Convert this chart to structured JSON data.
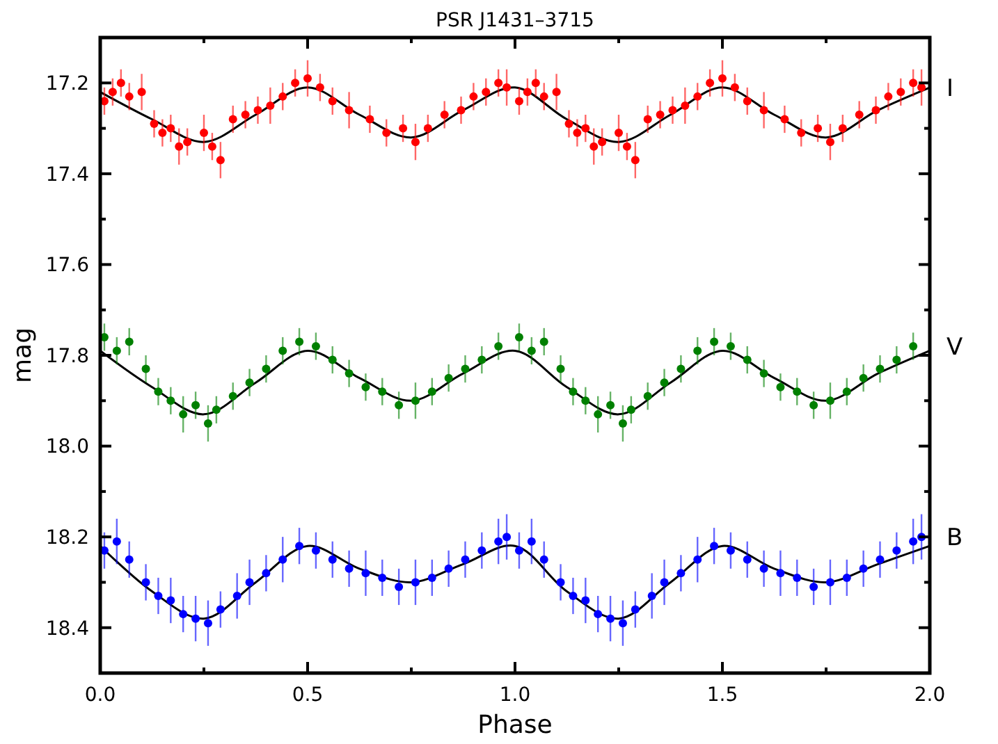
{
  "chart_data": {
    "type": "scatter",
    "title": "PSR J1431–3715",
    "xlabel": "Phase",
    "ylabel": "mag",
    "xlim": [
      0,
      2
    ],
    "ylim": [
      18.5,
      17.1
    ],
    "xticks": [
      {
        "value": 0,
        "label": "0.0"
      },
      {
        "value": 0.25,
        "label": null
      },
      {
        "value": 0.5,
        "label": "0.5"
      },
      {
        "value": 0.75,
        "label": null
      },
      {
        "value": 1,
        "label": "1.0"
      },
      {
        "value": 1.25,
        "label": null
      },
      {
        "value": 1.5,
        "label": "1.5"
      },
      {
        "value": 1.75,
        "label": null
      },
      {
        "value": 2,
        "label": "2.0"
      }
    ],
    "yticks": [
      {
        "value": 17.1,
        "label": null
      },
      17.2,
      {
        "value": 17.3,
        "label": null
      },
      17.4,
      {
        "value": 17.5,
        "label": null
      },
      17.6,
      {
        "value": 17.7,
        "label": null
      },
      17.8,
      {
        "value": 17.9,
        "label": null
      },
      {
        "value": 18,
        "label": "18.0"
      },
      {
        "value": 18.1,
        "label": null
      },
      18.2,
      {
        "value": 18.3,
        "label": null
      },
      18.4,
      {
        "value": 18.5,
        "label": null
      }
    ],
    "grid": false,
    "marker": "circle",
    "series": [
      {
        "name": "I",
        "color": "#ff0000",
        "x": [
          0.01,
          0.03,
          0.05,
          0.07,
          0.1,
          0.13,
          0.15,
          0.17,
          0.19,
          0.21,
          0.25,
          0.27,
          0.29,
          0.32,
          0.35,
          0.38,
          0.41,
          0.44,
          0.47,
          0.5,
          0.53,
          0.56,
          0.6,
          0.65,
          0.69,
          0.73,
          0.76,
          0.79,
          0.83,
          0.87,
          0.9,
          0.93,
          0.96,
          0.98,
          1.01,
          1.03,
          1.05,
          1.07,
          1.1,
          1.13,
          1.15,
          1.17,
          1.19,
          1.21,
          1.25,
          1.27,
          1.29,
          1.32,
          1.35,
          1.38,
          1.41,
          1.44,
          1.47,
          1.5,
          1.53,
          1.56,
          1.6,
          1.65,
          1.69,
          1.73,
          1.76,
          1.79,
          1.83,
          1.87,
          1.9,
          1.93,
          1.96,
          1.98
        ],
        "values": [
          17.24,
          17.22,
          17.2,
          17.23,
          17.22,
          17.29,
          17.31,
          17.3,
          17.34,
          17.33,
          17.31,
          17.34,
          17.37,
          17.28,
          17.27,
          17.26,
          17.25,
          17.23,
          17.2,
          17.19,
          17.21,
          17.24,
          17.26,
          17.28,
          17.31,
          17.3,
          17.33,
          17.3,
          17.27,
          17.26,
          17.23,
          17.22,
          17.2,
          17.21,
          17.24,
          17.22,
          17.2,
          17.23,
          17.22,
          17.29,
          17.31,
          17.3,
          17.34,
          17.33,
          17.31,
          17.34,
          17.37,
          17.28,
          17.27,
          17.26,
          17.25,
          17.23,
          17.2,
          17.19,
          17.21,
          17.24,
          17.26,
          17.28,
          17.31,
          17.3,
          17.33,
          17.3,
          17.27,
          17.26,
          17.23,
          17.22,
          17.2,
          17.21
        ],
        "errors": [
          0.03,
          0.03,
          0.03,
          0.03,
          0.04,
          0.03,
          0.03,
          0.03,
          0.04,
          0.03,
          0.04,
          0.03,
          0.04,
          0.03,
          0.03,
          0.03,
          0.04,
          0.03,
          0.03,
          0.04,
          0.03,
          0.03,
          0.04,
          0.03,
          0.03,
          0.03,
          0.04,
          0.03,
          0.03,
          0.03,
          0.03,
          0.03,
          0.03,
          0.04,
          0.03,
          0.03,
          0.03,
          0.03,
          0.04,
          0.03,
          0.03,
          0.03,
          0.04,
          0.03,
          0.04,
          0.03,
          0.04,
          0.03,
          0.03,
          0.03,
          0.04,
          0.03,
          0.03,
          0.04,
          0.03,
          0.03,
          0.04,
          0.03,
          0.03,
          0.03,
          0.04,
          0.03,
          0.03,
          0.03,
          0.03,
          0.03,
          0.03,
          0.04
        ]
      },
      {
        "name": "V",
        "color": "#008000",
        "x": [
          0.01,
          0.04,
          0.07,
          0.11,
          0.14,
          0.17,
          0.2,
          0.23,
          0.26,
          0.28,
          0.32,
          0.36,
          0.4,
          0.44,
          0.48,
          0.52,
          0.56,
          0.6,
          0.64,
          0.68,
          0.72,
          0.76,
          0.8,
          0.84,
          0.88,
          0.92,
          0.96,
          1.01,
          1.04,
          1.07,
          1.11,
          1.14,
          1.17,
          1.2,
          1.23,
          1.26,
          1.28,
          1.32,
          1.36,
          1.4,
          1.44,
          1.48,
          1.52,
          1.56,
          1.6,
          1.64,
          1.68,
          1.72,
          1.76,
          1.8,
          1.84,
          1.88,
          1.92,
          1.96
        ],
        "values": [
          17.76,
          17.79,
          17.77,
          17.83,
          17.88,
          17.9,
          17.93,
          17.91,
          17.95,
          17.92,
          17.89,
          17.86,
          17.83,
          17.79,
          17.77,
          17.78,
          17.81,
          17.84,
          17.87,
          17.88,
          17.91,
          17.9,
          17.88,
          17.85,
          17.83,
          17.81,
          17.78,
          17.76,
          17.79,
          17.77,
          17.83,
          17.88,
          17.9,
          17.93,
          17.91,
          17.95,
          17.92,
          17.89,
          17.86,
          17.83,
          17.79,
          17.77,
          17.78,
          17.81,
          17.84,
          17.87,
          17.88,
          17.91,
          17.9,
          17.88,
          17.85,
          17.83,
          17.81,
          17.78
        ],
        "errors": [
          0.03,
          0.03,
          0.03,
          0.03,
          0.03,
          0.03,
          0.04,
          0.03,
          0.04,
          0.03,
          0.03,
          0.03,
          0.03,
          0.03,
          0.03,
          0.03,
          0.03,
          0.03,
          0.03,
          0.03,
          0.03,
          0.04,
          0.03,
          0.03,
          0.03,
          0.03,
          0.03,
          0.03,
          0.03,
          0.03,
          0.03,
          0.03,
          0.03,
          0.04,
          0.03,
          0.04,
          0.03,
          0.03,
          0.03,
          0.03,
          0.03,
          0.03,
          0.03,
          0.03,
          0.03,
          0.03,
          0.03,
          0.03,
          0.04,
          0.03,
          0.03,
          0.03,
          0.03,
          0.03
        ]
      },
      {
        "name": "B",
        "color": "#0000ff",
        "x": [
          0.01,
          0.04,
          0.07,
          0.11,
          0.14,
          0.17,
          0.2,
          0.23,
          0.26,
          0.29,
          0.33,
          0.36,
          0.4,
          0.44,
          0.48,
          0.52,
          0.56,
          0.6,
          0.64,
          0.68,
          0.72,
          0.76,
          0.8,
          0.84,
          0.88,
          0.92,
          0.96,
          0.98,
          1.01,
          1.04,
          1.07,
          1.11,
          1.14,
          1.17,
          1.2,
          1.23,
          1.26,
          1.29,
          1.33,
          1.36,
          1.4,
          1.44,
          1.48,
          1.52,
          1.56,
          1.6,
          1.64,
          1.68,
          1.72,
          1.76,
          1.8,
          1.84,
          1.88,
          1.92,
          1.96,
          1.98
        ],
        "values": [
          18.23,
          18.21,
          18.25,
          18.3,
          18.33,
          18.34,
          18.37,
          18.38,
          18.39,
          18.36,
          18.33,
          18.3,
          18.28,
          18.25,
          18.22,
          18.23,
          18.25,
          18.27,
          18.28,
          18.29,
          18.31,
          18.3,
          18.29,
          18.27,
          18.25,
          18.23,
          18.21,
          18.2,
          18.23,
          18.21,
          18.25,
          18.3,
          18.33,
          18.34,
          18.37,
          18.38,
          18.39,
          18.36,
          18.33,
          18.3,
          18.28,
          18.25,
          18.22,
          18.23,
          18.25,
          18.27,
          18.28,
          18.29,
          18.31,
          18.3,
          18.29,
          18.27,
          18.25,
          18.23,
          18.21,
          18.2
        ],
        "errors": [
          0.04,
          0.05,
          0.04,
          0.04,
          0.04,
          0.05,
          0.04,
          0.05,
          0.05,
          0.04,
          0.05,
          0.05,
          0.04,
          0.05,
          0.04,
          0.04,
          0.04,
          0.04,
          0.05,
          0.04,
          0.04,
          0.05,
          0.04,
          0.04,
          0.04,
          0.04,
          0.05,
          0.05,
          0.04,
          0.05,
          0.04,
          0.04,
          0.04,
          0.05,
          0.04,
          0.05,
          0.05,
          0.04,
          0.05,
          0.05,
          0.04,
          0.05,
          0.04,
          0.04,
          0.04,
          0.04,
          0.05,
          0.04,
          0.04,
          0.05,
          0.04,
          0.04,
          0.04,
          0.04,
          0.05,
          0.05
        ]
      },
      {
        "type": "line",
        "marker": "none",
        "color": "#000000",
        "x": [
          0,
          0.125,
          0.25,
          0.375,
          0.5,
          0.625,
          0.75,
          0.875,
          1,
          1.125,
          1.25,
          1.375,
          1.5,
          1.625,
          1.75,
          1.875,
          2
        ],
        "values": [
          17.22,
          17.28,
          17.33,
          17.27,
          17.21,
          17.27,
          17.32,
          17.26,
          17.21,
          17.28,
          17.33,
          17.27,
          17.21,
          17.27,
          17.32,
          17.26,
          17.21
        ]
      },
      {
        "type": "line",
        "marker": "none",
        "color": "#000000",
        "x": [
          0,
          0.125,
          0.25,
          0.375,
          0.5,
          0.625,
          0.75,
          0.875,
          1,
          1.125,
          1.25,
          1.375,
          1.5,
          1.625,
          1.75,
          1.875,
          2
        ],
        "values": [
          17.79,
          17.87,
          17.93,
          17.86,
          17.79,
          17.85,
          17.9,
          17.84,
          17.79,
          17.87,
          17.93,
          17.86,
          17.79,
          17.85,
          17.9,
          17.84,
          17.79
        ]
      },
      {
        "type": "line",
        "marker": "none",
        "color": "#000000",
        "x": [
          0,
          0.125,
          0.25,
          0.375,
          0.5,
          0.625,
          0.75,
          0.875,
          1,
          1.125,
          1.25,
          1.375,
          1.5,
          1.625,
          1.75,
          1.875,
          2
        ],
        "values": [
          18.22,
          18.32,
          18.38,
          18.3,
          18.22,
          18.27,
          18.3,
          18.26,
          18.22,
          18.32,
          18.38,
          18.3,
          18.22,
          18.27,
          18.3,
          18.26,
          18.22
        ]
      }
    ]
  }
}
